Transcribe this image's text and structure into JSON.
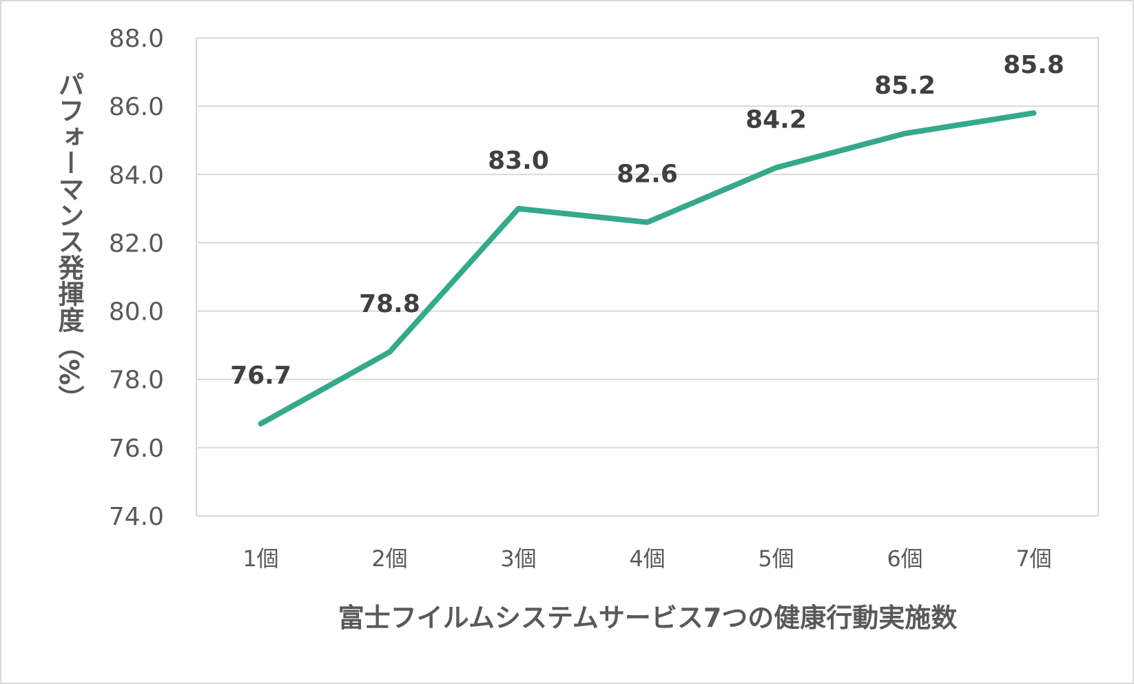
{
  "chart_data": {
    "type": "line",
    "title": "",
    "xlabel": "富士フイルムシステムサービス7つの健康行動実施数",
    "ylabel": "パフォーマンス発揮度（%）",
    "categories": [
      "1個",
      "2個",
      "3個",
      "4個",
      "5個",
      "6個",
      "7個"
    ],
    "series": [
      {
        "name": "パフォーマンス発揮度",
        "values": [
          76.7,
          78.8,
          83.0,
          82.6,
          84.2,
          85.2,
          85.8
        ],
        "color": "#36a98a"
      }
    ],
    "data_labels": [
      "76.7",
      "78.8",
      "83.0",
      "82.6",
      "84.2",
      "85.2",
      "85.8"
    ],
    "ylim": [
      74.0,
      88.0
    ],
    "yticks": [
      "74.0",
      "76.0",
      "78.0",
      "80.0",
      "82.0",
      "84.0",
      "86.0",
      "88.0"
    ],
    "grid": true,
    "legend": "none"
  }
}
